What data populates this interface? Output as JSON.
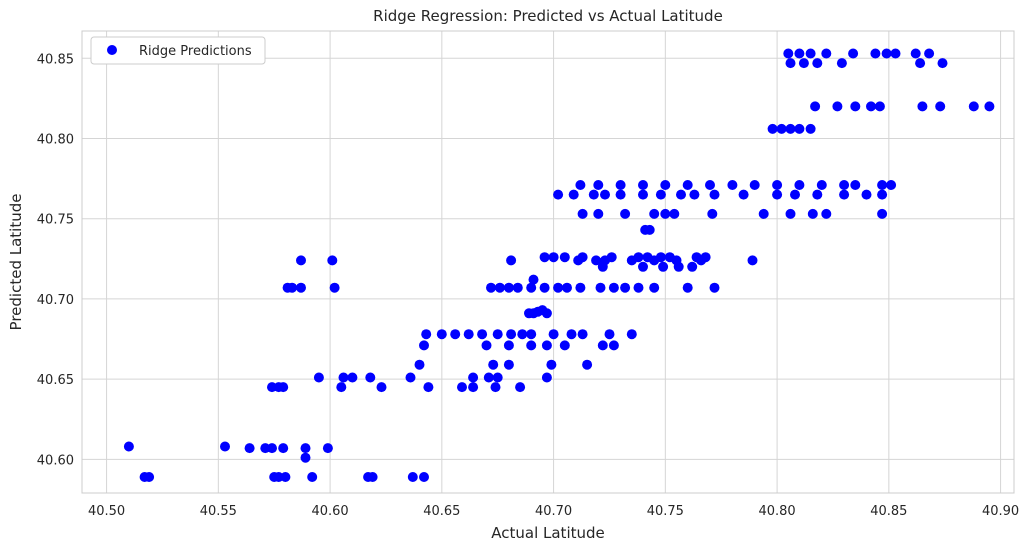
{
  "chart_data": {
    "type": "scatter",
    "title": "Ridge Regression: Predicted vs Actual Latitude",
    "xlabel": "Actual Latitude",
    "ylabel": "Predicted Latitude",
    "xlim": [
      40.489,
      40.906
    ],
    "ylim": [
      40.579,
      40.867
    ],
    "xticks": [
      "40.50",
      "40.55",
      "40.60",
      "40.65",
      "40.70",
      "40.75",
      "40.80",
      "40.85",
      "40.90"
    ],
    "yticks": [
      "40.60",
      "40.65",
      "40.70",
      "40.75",
      "40.80",
      "40.85"
    ],
    "grid": true,
    "legend_position": "top-left",
    "marker_color": "#0000ff",
    "series": [
      {
        "name": "Ridge Predictions",
        "points": [
          [
            40.51,
            40.608
          ],
          [
            40.517,
            40.589
          ],
          [
            40.519,
            40.589
          ],
          [
            40.553,
            40.608
          ],
          [
            40.564,
            40.607
          ],
          [
            40.571,
            40.607
          ],
          [
            40.574,
            40.607
          ],
          [
            40.579,
            40.607
          ],
          [
            40.589,
            40.607
          ],
          [
            40.599,
            40.607
          ],
          [
            40.575,
            40.589
          ],
          [
            40.577,
            40.589
          ],
          [
            40.58,
            40.589
          ],
          [
            40.592,
            40.589
          ],
          [
            40.617,
            40.589
          ],
          [
            40.619,
            40.589
          ],
          [
            40.637,
            40.589
          ],
          [
            40.642,
            40.589
          ],
          [
            40.589,
            40.601
          ],
          [
            40.574,
            40.645
          ],
          [
            40.577,
            40.645
          ],
          [
            40.579,
            40.645
          ],
          [
            40.605,
            40.645
          ],
          [
            40.623,
            40.645
          ],
          [
            40.644,
            40.645
          ],
          [
            40.659,
            40.645
          ],
          [
            40.664,
            40.645
          ],
          [
            40.674,
            40.645
          ],
          [
            40.685,
            40.645
          ],
          [
            40.595,
            40.651
          ],
          [
            40.606,
            40.651
          ],
          [
            40.61,
            40.651
          ],
          [
            40.618,
            40.651
          ],
          [
            40.636,
            40.651
          ],
          [
            40.664,
            40.651
          ],
          [
            40.671,
            40.651
          ],
          [
            40.675,
            40.651
          ],
          [
            40.697,
            40.651
          ],
          [
            40.64,
            40.659
          ],
          [
            40.673,
            40.659
          ],
          [
            40.68,
            40.659
          ],
          [
            40.699,
            40.659
          ],
          [
            40.715,
            40.659
          ],
          [
            40.642,
            40.671
          ],
          [
            40.67,
            40.671
          ],
          [
            40.68,
            40.671
          ],
          [
            40.69,
            40.671
          ],
          [
            40.705,
            40.671
          ],
          [
            40.722,
            40.671
          ],
          [
            40.727,
            40.671
          ],
          [
            40.697,
            40.671
          ],
          [
            40.643,
            40.678
          ],
          [
            40.65,
            40.678
          ],
          [
            40.656,
            40.678
          ],
          [
            40.662,
            40.678
          ],
          [
            40.668,
            40.678
          ],
          [
            40.675,
            40.678
          ],
          [
            40.681,
            40.678
          ],
          [
            40.686,
            40.678
          ],
          [
            40.69,
            40.678
          ],
          [
            40.7,
            40.678
          ],
          [
            40.708,
            40.678
          ],
          [
            40.713,
            40.678
          ],
          [
            40.725,
            40.678
          ],
          [
            40.735,
            40.678
          ],
          [
            40.689,
            40.691
          ],
          [
            40.691,
            40.691
          ],
          [
            40.693,
            40.692
          ],
          [
            40.695,
            40.693
          ],
          [
            40.697,
            40.691
          ],
          [
            40.581,
            40.707
          ],
          [
            40.583,
            40.707
          ],
          [
            40.587,
            40.707
          ],
          [
            40.602,
            40.707
          ],
          [
            40.672,
            40.707
          ],
          [
            40.676,
            40.707
          ],
          [
            40.68,
            40.707
          ],
          [
            40.684,
            40.707
          ],
          [
            40.69,
            40.707
          ],
          [
            40.696,
            40.707
          ],
          [
            40.702,
            40.707
          ],
          [
            40.706,
            40.707
          ],
          [
            40.712,
            40.707
          ],
          [
            40.721,
            40.707
          ],
          [
            40.727,
            40.707
          ],
          [
            40.732,
            40.707
          ],
          [
            40.738,
            40.707
          ],
          [
            40.745,
            40.707
          ],
          [
            40.76,
            40.707
          ],
          [
            40.772,
            40.707
          ],
          [
            40.587,
            40.724
          ],
          [
            40.601,
            40.724
          ],
          [
            40.681,
            40.724
          ],
          [
            40.711,
            40.724
          ],
          [
            40.719,
            40.724
          ],
          [
            40.723,
            40.724
          ],
          [
            40.735,
            40.724
          ],
          [
            40.745,
            40.724
          ],
          [
            40.755,
            40.724
          ],
          [
            40.766,
            40.724
          ],
          [
            40.789,
            40.724
          ],
          [
            40.696,
            40.726
          ],
          [
            40.7,
            40.726
          ],
          [
            40.705,
            40.726
          ],
          [
            40.713,
            40.726
          ],
          [
            40.726,
            40.726
          ],
          [
            40.738,
            40.726
          ],
          [
            40.742,
            40.726
          ],
          [
            40.748,
            40.726
          ],
          [
            40.752,
            40.726
          ],
          [
            40.764,
            40.726
          ],
          [
            40.768,
            40.726
          ],
          [
            40.74,
            40.72
          ],
          [
            40.749,
            40.72
          ],
          [
            40.756,
            40.72
          ],
          [
            40.762,
            40.72
          ],
          [
            40.722,
            40.72
          ],
          [
            40.691,
            40.712
          ],
          [
            40.741,
            40.743
          ],
          [
            40.743,
            40.743
          ],
          [
            40.713,
            40.753
          ],
          [
            40.72,
            40.753
          ],
          [
            40.732,
            40.753
          ],
          [
            40.745,
            40.753
          ],
          [
            40.75,
            40.753
          ],
          [
            40.754,
            40.753
          ],
          [
            40.771,
            40.753
          ],
          [
            40.794,
            40.753
          ],
          [
            40.806,
            40.753
          ],
          [
            40.816,
            40.753
          ],
          [
            40.822,
            40.753
          ],
          [
            40.847,
            40.753
          ],
          [
            40.702,
            40.765
          ],
          [
            40.709,
            40.765
          ],
          [
            40.718,
            40.765
          ],
          [
            40.723,
            40.765
          ],
          [
            40.73,
            40.765
          ],
          [
            40.74,
            40.765
          ],
          [
            40.748,
            40.765
          ],
          [
            40.757,
            40.765
          ],
          [
            40.763,
            40.765
          ],
          [
            40.772,
            40.765
          ],
          [
            40.785,
            40.765
          ],
          [
            40.8,
            40.765
          ],
          [
            40.808,
            40.765
          ],
          [
            40.818,
            40.765
          ],
          [
            40.83,
            40.765
          ],
          [
            40.84,
            40.765
          ],
          [
            40.847,
            40.765
          ],
          [
            40.712,
            40.771
          ],
          [
            40.72,
            40.771
          ],
          [
            40.73,
            40.771
          ],
          [
            40.74,
            40.771
          ],
          [
            40.75,
            40.771
          ],
          [
            40.76,
            40.771
          ],
          [
            40.77,
            40.771
          ],
          [
            40.78,
            40.771
          ],
          [
            40.79,
            40.771
          ],
          [
            40.8,
            40.771
          ],
          [
            40.81,
            40.771
          ],
          [
            40.82,
            40.771
          ],
          [
            40.83,
            40.771
          ],
          [
            40.835,
            40.771
          ],
          [
            40.847,
            40.771
          ],
          [
            40.851,
            40.771
          ],
          [
            40.798,
            40.806
          ],
          [
            40.802,
            40.806
          ],
          [
            40.806,
            40.806
          ],
          [
            40.81,
            40.806
          ],
          [
            40.815,
            40.806
          ],
          [
            40.817,
            40.82
          ],
          [
            40.827,
            40.82
          ],
          [
            40.835,
            40.82
          ],
          [
            40.842,
            40.82
          ],
          [
            40.846,
            40.82
          ],
          [
            40.865,
            40.82
          ],
          [
            40.873,
            40.82
          ],
          [
            40.888,
            40.82
          ],
          [
            40.895,
            40.82
          ],
          [
            40.805,
            40.853
          ],
          [
            40.81,
            40.853
          ],
          [
            40.815,
            40.853
          ],
          [
            40.822,
            40.853
          ],
          [
            40.834,
            40.853
          ],
          [
            40.844,
            40.853
          ],
          [
            40.849,
            40.853
          ],
          [
            40.853,
            40.853
          ],
          [
            40.862,
            40.853
          ],
          [
            40.868,
            40.853
          ],
          [
            40.806,
            40.847
          ],
          [
            40.812,
            40.847
          ],
          [
            40.818,
            40.847
          ],
          [
            40.829,
            40.847
          ],
          [
            40.864,
            40.847
          ],
          [
            40.874,
            40.847
          ]
        ]
      }
    ]
  }
}
